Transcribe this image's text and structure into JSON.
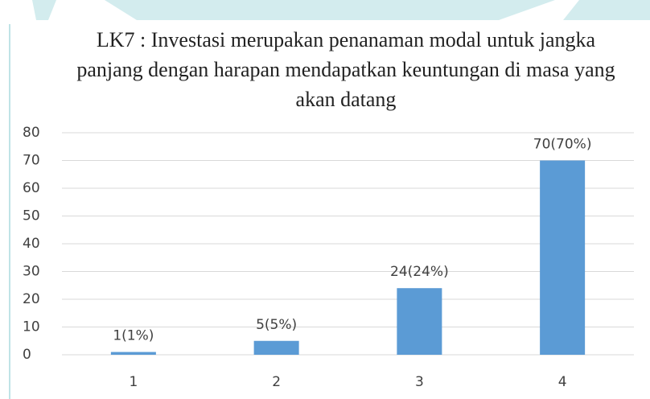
{
  "chart_data": {
    "type": "bar",
    "title": "LK7 : Investasi merupakan penanaman modal untuk jangka panjang dengan harapan mendapatkan keuntungan di masa yang akan datang",
    "categories": [
      "1",
      "2",
      "3",
      "4"
    ],
    "values": [
      1,
      5,
      24,
      70
    ],
    "value_labels": [
      "1(1%)",
      "5(5%)",
      "24(24%)",
      "70(70%)"
    ],
    "color": "#5b9bd5",
    "ylim": [
      0,
      80
    ],
    "yticks": [
      0,
      10,
      20,
      30,
      40,
      50,
      60,
      70,
      80
    ],
    "grid": true
  }
}
